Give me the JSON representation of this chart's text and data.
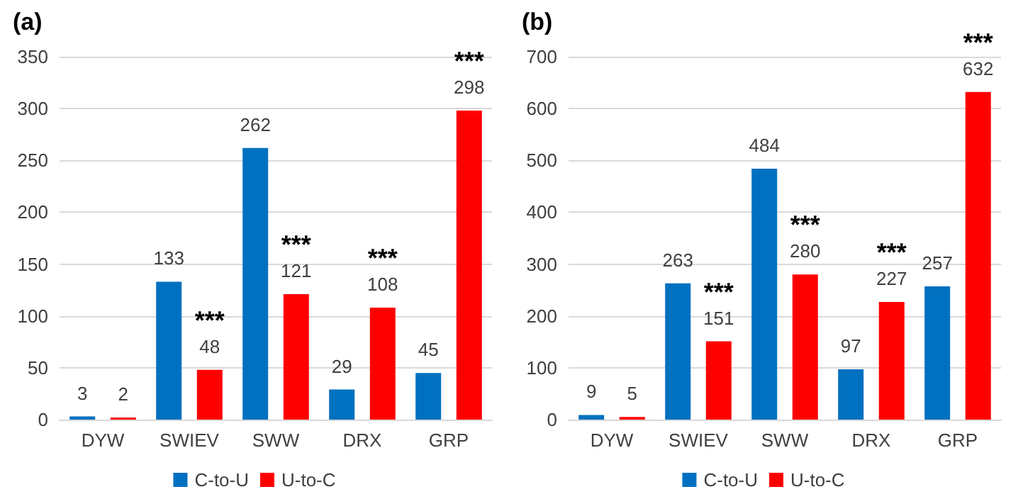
{
  "chart_data": [
    {
      "type": "bar",
      "title": "(a)",
      "categories": [
        "DYW",
        "SWIEV",
        "SWW",
        "DRX",
        "GRP"
      ],
      "series": [
        {
          "name": "C-to-U",
          "color": "#0070c0",
          "values": [
            3,
            133,
            262,
            29,
            45
          ],
          "value_labels": [
            "3",
            "133",
            "262",
            "29",
            "45"
          ]
        },
        {
          "name": "U-to-C",
          "color": "#ff0000",
          "values": [
            2,
            48,
            121,
            108,
            298
          ],
          "value_labels": [
            "2",
            "***\n48",
            "***\n121",
            "***\n108",
            "***\n298"
          ]
        }
      ],
      "ylim": [
        0,
        350
      ],
      "yticks": [
        0,
        50,
        100,
        150,
        200,
        250,
        300,
        350
      ],
      "grid": "y",
      "legend": "bottom"
    },
    {
      "type": "bar",
      "title": "(b)",
      "categories": [
        "DYW",
        "SWIEV",
        "SWW",
        "DRX",
        "GRP"
      ],
      "series": [
        {
          "name": "C-to-U",
          "color": "#0070c0",
          "values": [
            9,
            263,
            484,
            97,
            257
          ],
          "value_labels": [
            "9",
            "263",
            "484",
            "97",
            "257"
          ]
        },
        {
          "name": "U-to-C",
          "color": "#ff0000",
          "values": [
            5,
            151,
            280,
            227,
            632
          ],
          "value_labels": [
            "5",
            "***\n151",
            "***\n280",
            "***\n227",
            "***\n632"
          ]
        }
      ],
      "ylim": [
        0,
        700
      ],
      "yticks": [
        0,
        100,
        200,
        300,
        400,
        500,
        600,
        700
      ],
      "grid": "y",
      "legend": "bottom"
    }
  ]
}
